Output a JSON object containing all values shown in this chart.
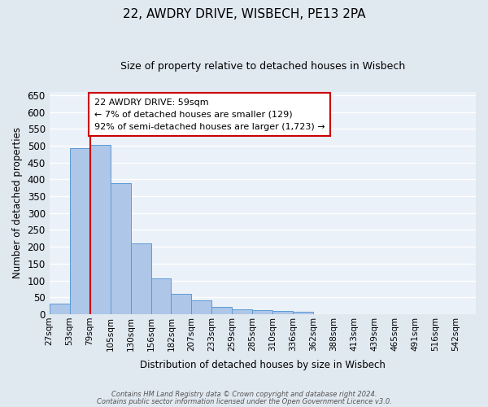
{
  "title": "22, AWDRY DRIVE, WISBECH, PE13 2PA",
  "subtitle": "Size of property relative to detached houses in Wisbech",
  "xlabel": "Distribution of detached houses by size in Wisbech",
  "ylabel": "Number of detached properties",
  "bin_labels": [
    "27sqm",
    "53sqm",
    "79sqm",
    "105sqm",
    "130sqm",
    "156sqm",
    "182sqm",
    "207sqm",
    "233sqm",
    "259sqm",
    "285sqm",
    "310sqm",
    "336sqm",
    "362sqm",
    "388sqm",
    "413sqm",
    "439sqm",
    "465sqm",
    "491sqm",
    "516sqm",
    "542sqm"
  ],
  "bar_heights": [
    32,
    493,
    503,
    390,
    210,
    107,
    61,
    40,
    22,
    15,
    12,
    10,
    8,
    1,
    0,
    0,
    1,
    0,
    1,
    0,
    1
  ],
  "bar_color": "#aec6e8",
  "bar_edge_color": "#5b9bd5",
  "property_line_color": "#cc0000",
  "annotation_box_color": "#ffffff",
  "annotation_box_edge_color": "#cc0000",
  "background_color": "#e0e8f0",
  "plot_area_color": "#eaf1f8",
  "grid_color": "#ffffff",
  "ylim": [
    0,
    660
  ],
  "yticks": [
    0,
    50,
    100,
    150,
    200,
    250,
    300,
    350,
    400,
    450,
    500,
    550,
    600,
    650
  ],
  "annotation_title": "22 AWDRY DRIVE: 59sqm",
  "annotation_line1": "← 7% of detached houses are smaller (129)",
  "annotation_line2": "92% of semi-detached houses are larger (1,723) →",
  "footer1": "Contains HM Land Registry data © Crown copyright and database right 2024.",
  "footer2": "Contains public sector information licensed under the Open Government Licence v3.0."
}
